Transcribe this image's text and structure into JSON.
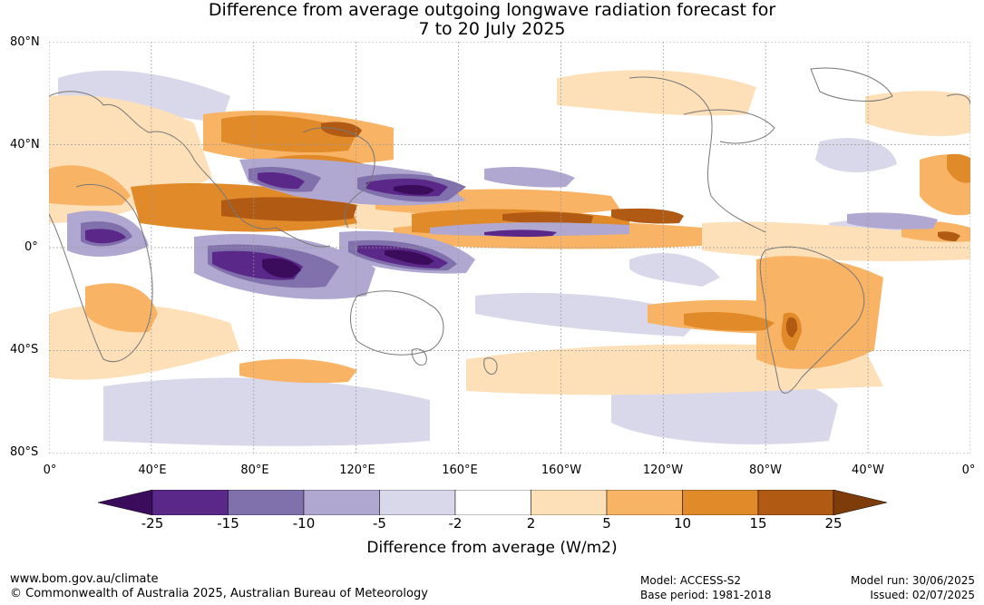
{
  "title_line1": "Difference from average outgoing longwave radiation forecast for",
  "title_line2": "7 to 20 July 2025",
  "lat_labels": [
    "80°N",
    "40°N",
    "0°",
    "40°S",
    "80°S"
  ],
  "lon_labels": [
    "0°",
    "40°E",
    "80°E",
    "120°E",
    "160°E",
    "160°W",
    "120°W",
    "80°W",
    "40°W",
    "0°"
  ],
  "colorbar": {
    "ticks": [
      "-25",
      "-15",
      "-10",
      "-5",
      "-2",
      "2",
      "5",
      "10",
      "15",
      "25"
    ],
    "colors": [
      "#3c0c5c",
      "#5a2888",
      "#8070ac",
      "#b0a8d0",
      "#d8d8ea",
      "#ffffff",
      "#fde0b8",
      "#f8b464",
      "#e08a2a",
      "#b05a14",
      "#7e3c0a"
    ],
    "label": "Difference from average (W/m2)"
  },
  "footer": {
    "url": "www.bom.gov.au/climate",
    "copyright": "© Commonwealth of Australia 2025, Australian Bureau of Meteorology",
    "model": "Model: ACCESS-S2",
    "base_period": "Base period: 1981-2018",
    "model_run": "Model run: 30/06/2025",
    "issued": "Issued: 02/07/2025"
  }
}
